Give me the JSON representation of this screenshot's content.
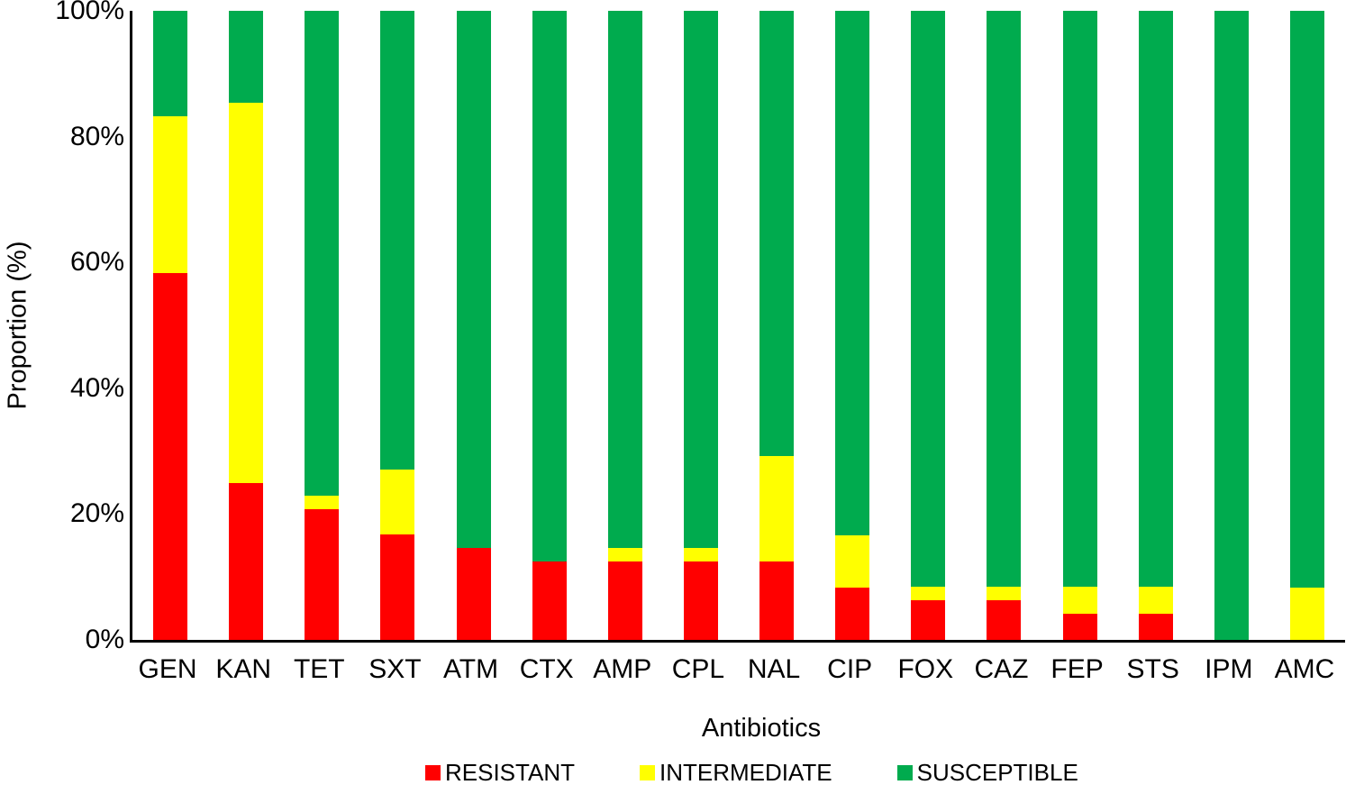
{
  "figure": {
    "y_axis_title": "Proportion (%)",
    "x_axis_title": "Antibiotics"
  },
  "chart_data": {
    "type": "bar",
    "stacked": true,
    "orientation": "vertical",
    "title": "",
    "xlabel": "Antibiotics",
    "ylabel": "Proportion (%)",
    "ylim": [
      0,
      100
    ],
    "grid": false,
    "legend_position": "bottom",
    "yticks": [
      {
        "label": "100%",
        "value": 100
      },
      {
        "label": "80%",
        "value": 80
      },
      {
        "label": "60%",
        "value": 60
      },
      {
        "label": "40%",
        "value": 40
      },
      {
        "label": "20%",
        "value": 20
      },
      {
        "label": "0%",
        "value": 0
      }
    ],
    "categories": [
      "GEN",
      "KAN",
      "TET",
      "SXT",
      "ATM",
      "CTX",
      "AMP",
      "CPL",
      "NAL",
      "CIP",
      "FOX",
      "CAZ",
      "FEP",
      "STS",
      "IPM",
      "AMC"
    ],
    "series": [
      {
        "name": "RESISTANT",
        "color": "#FF0000",
        "values": [
          58.3,
          25.0,
          20.8,
          16.7,
          14.6,
          12.5,
          12.5,
          12.5,
          12.5,
          8.3,
          6.3,
          6.3,
          4.2,
          4.2,
          0,
          0
        ]
      },
      {
        "name": "INTERMEDIATE",
        "color": "#FFFF00",
        "values": [
          25.0,
          60.4,
          2.1,
          10.4,
          0,
          0,
          2.1,
          2.1,
          16.7,
          8.3,
          2.1,
          2.1,
          4.2,
          4.2,
          0,
          8.3
        ]
      },
      {
        "name": "SUSCEPTIBLE",
        "color": "#00AB4E",
        "values": [
          16.7,
          14.6,
          77.1,
          72.9,
          85.4,
          87.5,
          85.4,
          85.4,
          70.8,
          83.4,
          91.6,
          91.6,
          91.6,
          91.6,
          100,
          91.7
        ]
      }
    ]
  }
}
